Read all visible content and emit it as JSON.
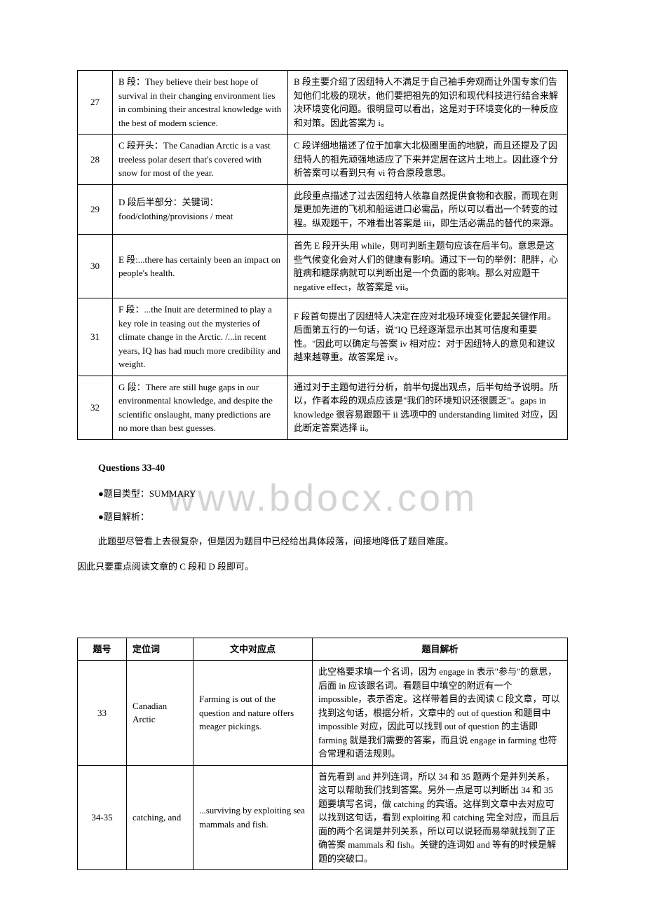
{
  "watermark": "www.bdocx.com",
  "table1": {
    "rows": [
      {
        "num": "27",
        "text": "B 段：They believe their best hope of survival in their changing environment lies in combining their ancestral knowledge with the best of modern science.",
        "analysis": "B 段主要介绍了因纽特人不满足于自己袖手旁观而让外国专家们告知他们北极的现状，他们要把祖先的知识和现代科技进行结合来解决环境变化问题。很明显可以看出，这是对于环境变化的一种反应和对策。因此答案为 i。"
      },
      {
        "num": "28",
        "text": "C 段开头：The Canadian Arctic is a vast treeless polar desert that's covered with snow for most of the year.",
        "analysis": "C 段详细地描述了位于加拿大北极圈里面的地貌，而且还提及了因纽特人的祖先顽强地适应了下来并定居在这片土地上。因此逐个分析答案可以看到只有 vi 符合原段意思。"
      },
      {
        "num": "29",
        "text": "D 段后半部分：关键词：food/clothing/provisions / meat",
        "analysis": "此段重点描述了过去因纽特人依靠自然提供食物和衣服，而现在则是更加先进的飞机和船运进口必需品，所以可以看出一个转变的过程。纵观题干，不难看出答案是 iii，即生活必需品的替代的来源。"
      },
      {
        "num": "30",
        "text": "E 段:...there has certainly been an impact on people's health.",
        "analysis": "首先 E 段开头用 while，则可判断主题句应该在后半句。意思是这些气候变化会对人们的健康有影响。通过下一句的举例：肥胖，心脏病和糖尿病就可以判断出是一个负面的影响。那么对应题干 negative effect，故答案是 vii。"
      },
      {
        "num": "31",
        "text": "F 段：...the Inuit are determined to play a key role in teasing out the mysteries of climate change in the Arctic. /...in recent years, IQ has had much more credibility and weight.",
        "analysis": "F 段首句提出了因纽特人决定在应对北极环境变化要起关键作用。后面第五行的一句话，说\"IQ 已经逐渐显示出其可信度和重要性。\"因此可以确定与答案 iv 相对应：对于因纽特人的意见和建议越来越尊重。故答案是 iv。"
      },
      {
        "num": "32",
        "text": "G 段：There are still huge gaps in our environmental knowledge, and despite the scientific onslaught, many predictions are no more than best guesses.",
        "analysis": "通过对于主题句进行分析，前半句提出观点，后半句给予说明。所以，作者本段的观点应该是\"我们的环境知识还很匮乏\"。gaps in knowledge 很容易跟题干 ii 选项中的 understanding limited 对应，因此断定答案选择 ii。"
      }
    ]
  },
  "section": {
    "heading": "Questions 33-40",
    "bullet1_label": "题目类型：",
    "bullet1_value": "SUMMARY",
    "bullet2_label": "题目解析：",
    "para1": "此题型尽管看上去很复杂，但是因为题目中已经给出具体段落，间接地降低了题目难度。",
    "para2": "因此只要重点阅读文章的 C 段和 D 段即可。"
  },
  "table2": {
    "headers": {
      "c1": "题号",
      "c2": "定位词",
      "c3": "文中对应点",
      "c4": "题目解析"
    },
    "rows": [
      {
        "num": "33",
        "loc": "Canadian Arctic",
        "text": "Farming is out of the question and nature offers meager pickings.",
        "analysis": "此空格要求填一个名词，因为 engage in 表示\"参与\"的意思，后面 in 应该跟名词。看题目中填空的附近有一个 impossible，表示否定。这样带着目的去阅读 C 段文章，可以找到这句话，根据分析，文章中的 out of question 和题目中 impossible 对应，因此可以找到 out of question 的主语即 farming 就是我们需要的答案，而且说 engage in farming 也符合常理和语法规则。"
      },
      {
        "num": "34-35",
        "loc": "catching, and",
        "text": "...surviving by exploiting sea mammals and fish.",
        "analysis": "首先看到 and 并列连词，所以 34 和 35 题两个是并列关系，这可以帮助我们找到答案。另外一点是可以判断出 34 和 35 题要填写名词，做 catching 的宾语。这样到文章中去对应可以找到这句话，看到 exploiting 和 catching 完全对应，而且后面的两个名词是并列关系，所以可以说轻而易举就找到了正确答案 mammals 和 fish。关键的连词如 and 等有的时候是解题的突破口。"
      }
    ]
  }
}
